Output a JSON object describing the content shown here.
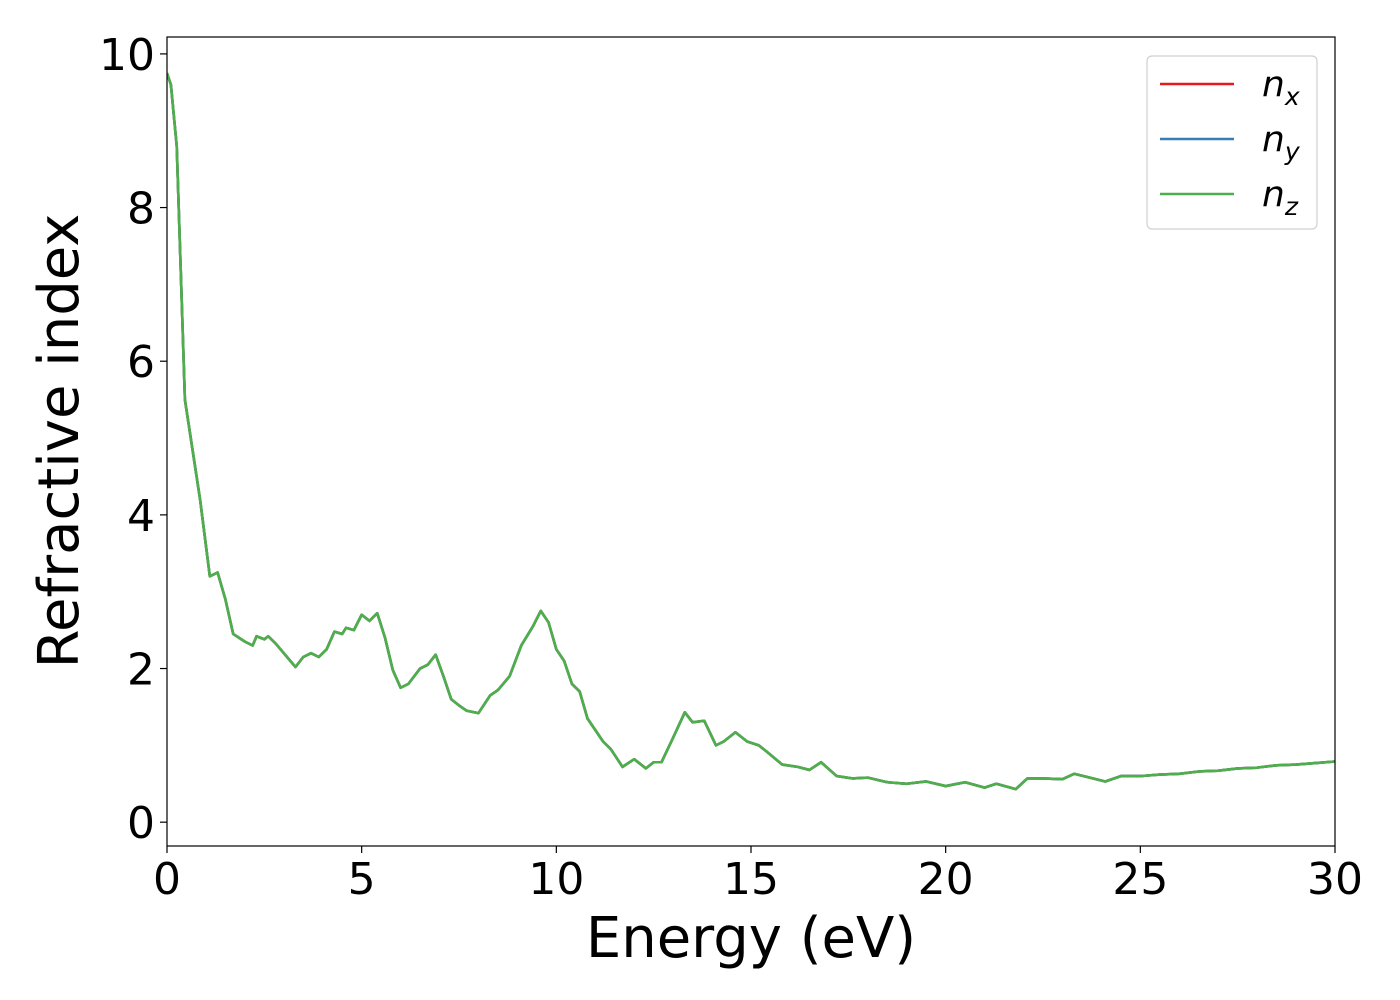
{
  "chart_data": {
    "type": "line",
    "xlabel": "Energy (eV)",
    "ylabel": "Refractive index",
    "x": [
      0,
      0.1,
      0.25,
      0.46,
      0.85,
      1.0,
      1.1,
      1.3,
      1.5,
      1.7,
      2.0,
      2.2,
      2.3,
      2.5,
      2.6,
      2.8,
      3.0,
      3.3,
      3.5,
      3.7,
      3.9,
      4.1,
      4.3,
      4.5,
      4.6,
      4.8,
      5.0,
      5.2,
      5.4,
      5.6,
      5.8,
      6.0,
      6.2,
      6.5,
      6.7,
      6.9,
      7.1,
      7.3,
      7.5,
      7.7,
      8.0,
      8.3,
      8.5,
      8.8,
      9.1,
      9.4,
      9.6,
      9.8,
      10.0,
      10.2,
      10.4,
      10.6,
      10.8,
      11.0,
      11.2,
      11.4,
      11.7,
      12.0,
      12.3,
      12.5,
      12.7,
      13.0,
      13.3,
      13.5,
      13.8,
      14.1,
      14.3,
      14.6,
      14.9,
      15.2,
      15.4,
      15.8,
      16.2,
      16.5,
      16.8,
      17.2,
      17.6,
      18.0,
      18.5,
      19.0,
      19.5,
      20.0,
      20.5,
      21.0,
      21.3,
      21.8,
      22.1,
      22.5,
      23.0,
      23.3,
      23.7,
      24.1,
      24.5,
      25.0,
      25.5,
      26.0,
      26.5,
      27.0,
      27.5,
      28.0,
      28.5,
      29.0,
      29.5,
      30.0
    ],
    "series": [
      {
        "name": "nx",
        "color": "#e41a1c",
        "values": [
          9.75,
          9.6,
          8.8,
          5.5,
          4.2,
          3.6,
          3.2,
          3.25,
          2.9,
          2.45,
          2.35,
          2.3,
          2.42,
          2.38,
          2.42,
          2.32,
          2.2,
          2.02,
          2.15,
          2.2,
          2.15,
          2.25,
          2.48,
          2.45,
          2.53,
          2.5,
          2.7,
          2.62,
          2.72,
          2.4,
          1.98,
          1.75,
          1.8,
          2.0,
          2.05,
          2.18,
          1.9,
          1.6,
          1.52,
          1.45,
          1.42,
          1.65,
          1.72,
          1.9,
          2.3,
          2.55,
          2.75,
          2.6,
          2.25,
          2.1,
          1.8,
          1.7,
          1.35,
          1.2,
          1.05,
          0.95,
          0.72,
          0.82,
          0.7,
          0.78,
          0.78,
          1.1,
          1.43,
          1.3,
          1.32,
          1.0,
          1.05,
          1.17,
          1.05,
          1.0,
          0.92,
          0.75,
          0.72,
          0.68,
          0.78,
          0.6,
          0.57,
          0.58,
          0.52,
          0.5,
          0.53,
          0.47,
          0.52,
          0.45,
          0.5,
          0.43,
          0.57,
          0.57,
          0.56,
          0.63,
          0.58,
          0.53,
          0.6,
          0.6,
          0.62,
          0.63,
          0.66,
          0.67,
          0.7,
          0.71,
          0.74,
          0.75,
          0.77,
          0.79
        ]
      },
      {
        "name": "ny",
        "color": "#377eb8",
        "values": [
          9.75,
          9.6,
          8.8,
          5.5,
          4.2,
          3.6,
          3.2,
          3.25,
          2.9,
          2.45,
          2.35,
          2.3,
          2.42,
          2.38,
          2.42,
          2.32,
          2.2,
          2.02,
          2.15,
          2.2,
          2.15,
          2.25,
          2.48,
          2.45,
          2.53,
          2.5,
          2.7,
          2.62,
          2.72,
          2.4,
          1.98,
          1.75,
          1.8,
          2.0,
          2.05,
          2.18,
          1.9,
          1.6,
          1.52,
          1.45,
          1.42,
          1.65,
          1.72,
          1.9,
          2.3,
          2.55,
          2.75,
          2.6,
          2.25,
          2.1,
          1.8,
          1.7,
          1.35,
          1.2,
          1.05,
          0.95,
          0.72,
          0.82,
          0.7,
          0.78,
          0.78,
          1.1,
          1.43,
          1.3,
          1.32,
          1.0,
          1.05,
          1.17,
          1.05,
          1.0,
          0.92,
          0.75,
          0.72,
          0.68,
          0.78,
          0.6,
          0.57,
          0.58,
          0.52,
          0.5,
          0.53,
          0.47,
          0.52,
          0.45,
          0.5,
          0.43,
          0.57,
          0.57,
          0.56,
          0.63,
          0.58,
          0.53,
          0.6,
          0.6,
          0.62,
          0.63,
          0.66,
          0.67,
          0.7,
          0.71,
          0.74,
          0.75,
          0.77,
          0.79
        ]
      },
      {
        "name": "nz",
        "color": "#4daf4a",
        "values": [
          9.75,
          9.6,
          8.8,
          5.5,
          4.2,
          3.6,
          3.2,
          3.25,
          2.9,
          2.45,
          2.35,
          2.3,
          2.42,
          2.38,
          2.42,
          2.32,
          2.2,
          2.02,
          2.15,
          2.2,
          2.15,
          2.25,
          2.48,
          2.45,
          2.53,
          2.5,
          2.7,
          2.62,
          2.72,
          2.4,
          1.98,
          1.75,
          1.8,
          2.0,
          2.05,
          2.18,
          1.9,
          1.6,
          1.52,
          1.45,
          1.42,
          1.65,
          1.72,
          1.9,
          2.3,
          2.55,
          2.75,
          2.6,
          2.25,
          2.1,
          1.8,
          1.7,
          1.35,
          1.2,
          1.05,
          0.95,
          0.72,
          0.82,
          0.7,
          0.78,
          0.78,
          1.1,
          1.43,
          1.3,
          1.32,
          1.0,
          1.05,
          1.17,
          1.05,
          1.0,
          0.92,
          0.75,
          0.72,
          0.68,
          0.78,
          0.6,
          0.57,
          0.58,
          0.52,
          0.5,
          0.53,
          0.47,
          0.52,
          0.45,
          0.5,
          0.43,
          0.57,
          0.57,
          0.56,
          0.63,
          0.58,
          0.53,
          0.6,
          0.6,
          0.62,
          0.63,
          0.66,
          0.67,
          0.7,
          0.71,
          0.74,
          0.75,
          0.77,
          0.79
        ]
      }
    ],
    "xlim": [
      0,
      30
    ],
    "xticks": [
      0,
      5,
      10,
      15,
      20,
      25,
      30
    ],
    "ylim": [
      -0.31,
      10.22
    ],
    "yticks": [
      0,
      2,
      4,
      6,
      8,
      10
    ],
    "grid": false,
    "legend": "upper right"
  }
}
